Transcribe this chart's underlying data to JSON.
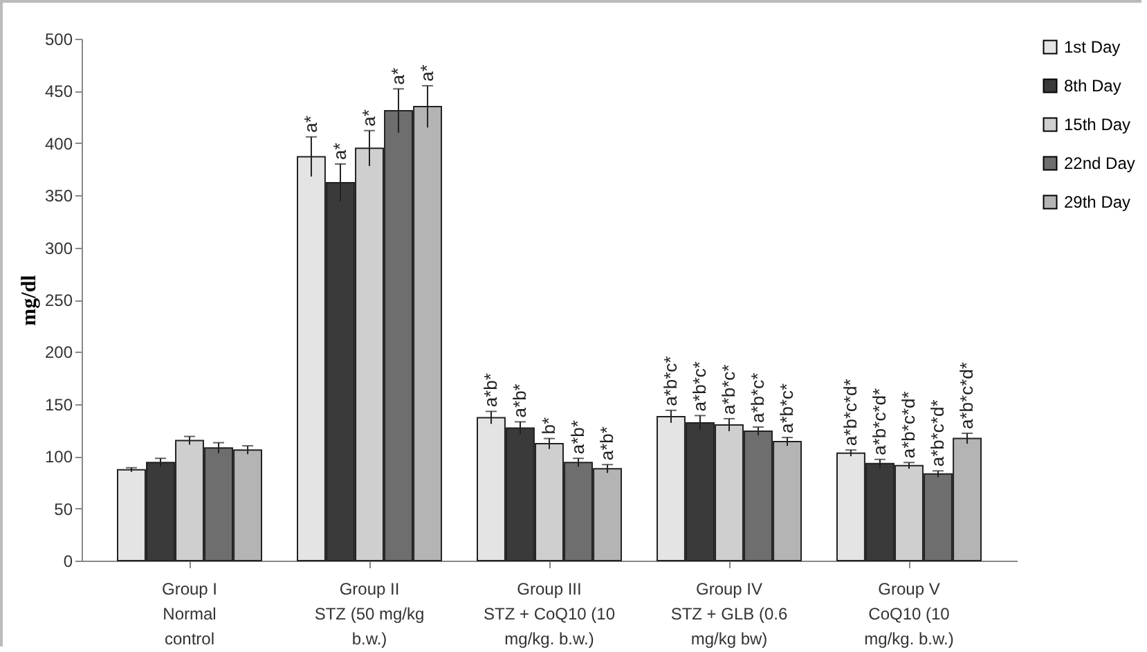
{
  "chart_data": {
    "type": "bar",
    "ylabel": "mg/dl",
    "categories": [
      "Group I\nNormal\ncontrol",
      "Group II\nSTZ (50 mg/kg\nb.w.)",
      "Group III\nSTZ + CoQ10 (10\nmg/kg. b.w.)",
      "Group IV\nSTZ + GLB (0.6\nmg/kg bw)",
      "Group V\nCoQ10 (10\nmg/kg. b.w.)"
    ],
    "series": [
      {
        "name": "1st Day",
        "color": "#e4e4e4",
        "values": [
          87,
          387,
          137,
          138,
          103
        ],
        "errors": [
          2,
          19,
          6,
          6,
          3
        ],
        "value_labels": [
          null,
          "a*",
          "a*b*",
          "a*b*c*",
          "a*b*c*d*"
        ]
      },
      {
        "name": "8th Day",
        "color": "#3a3a3a",
        "values": [
          94,
          362,
          127,
          132,
          93
        ],
        "errors": [
          4,
          18,
          6,
          7,
          4
        ],
        "value_labels": [
          null,
          "a*",
          "a*b*",
          "a*b*c*",
          "a*b*c*d*"
        ]
      },
      {
        "name": "15th Day",
        "color": "#cfcfcf",
        "values": [
          115,
          395,
          112,
          130,
          91
        ],
        "errors": [
          4,
          17,
          5,
          6,
          3
        ],
        "value_labels": [
          null,
          "a*",
          "b*",
          "a*b*c*",
          "a*b*c*d*"
        ]
      },
      {
        "name": "22nd Day",
        "color": "#6e6e6e",
        "values": [
          108,
          431,
          94,
          124,
          83
        ],
        "errors": [
          5,
          21,
          4,
          4,
          3
        ],
        "value_labels": [
          null,
          "a*",
          "a*b*",
          "a*b*c*",
          "a*b*c*d*"
        ]
      },
      {
        "name": "29th Day",
        "color": "#b4b4b4",
        "values": [
          106,
          435,
          88,
          114,
          117
        ],
        "errors": [
          4,
          20,
          4,
          4,
          5
        ],
        "value_labels": [
          null,
          "a*",
          "a*b*",
          "a*b*c*",
          "a*b*c*d*"
        ]
      }
    ],
    "ylim": [
      0,
      500
    ],
    "yticks": [
      0,
      50,
      100,
      150,
      200,
      250,
      300,
      350,
      400,
      450,
      500
    ],
    "grid": false,
    "legend": "right"
  }
}
